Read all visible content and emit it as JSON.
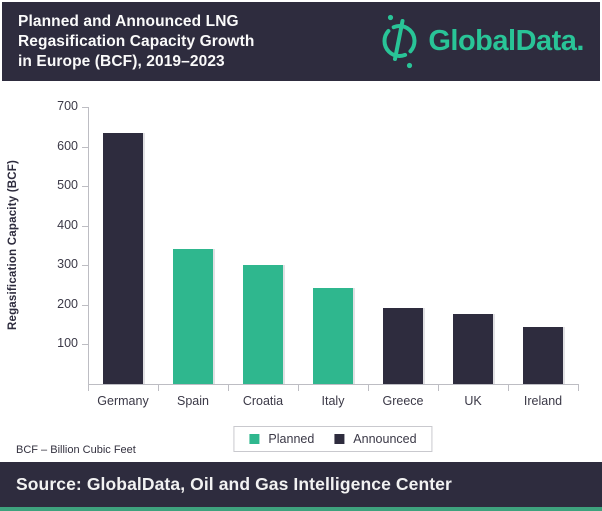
{
  "header": {
    "title_lines": [
      "Planned and Announced LNG",
      "Regasification Capacity Growth",
      "in Europe (BCF), 2019–2023"
    ],
    "logo_text": "GlobalData."
  },
  "colors": {
    "navy": "#2E2C3E",
    "teal": "#2FB78E",
    "logo_teal": "#29C497",
    "axis": "#BDBDC3",
    "tick_text": "#3B3947",
    "strip_green": "#3EA27D"
  },
  "chart_data": {
    "type": "bar",
    "title": "Planned and Announced LNG Regasification Capacity Growth in Europe (BCF), 2019–2023",
    "xlabel": "",
    "ylabel": "Regasification Capacity (BCF)",
    "ylim": [
      0,
      700
    ],
    "yticks": [
      100,
      200,
      300,
      400,
      500,
      600,
      700
    ],
    "grid": false,
    "categories": [
      "Germany",
      "Spain",
      "Croatia",
      "Italy",
      "Greece",
      "UK",
      "Ireland"
    ],
    "values": [
      635,
      340,
      300,
      242,
      193,
      176,
      145
    ],
    "series_by_bar": [
      "Announced",
      "Planned",
      "Planned",
      "Planned",
      "Announced",
      "Announced",
      "Announced"
    ],
    "legend": [
      {
        "label": "Planned",
        "color": "#2FB78E"
      },
      {
        "label": "Announced",
        "color": "#2E2C3E"
      }
    ],
    "legend_position": "bottom-center"
  },
  "footnote": "BCF – Billion Cubic Feet",
  "footer": {
    "source": "Source: GlobalData, Oil and Gas Intelligence Center"
  }
}
